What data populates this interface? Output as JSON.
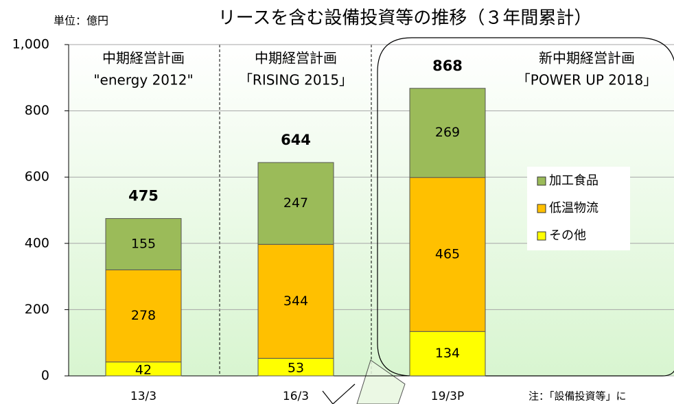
{
  "chart_data": {
    "type": "bar",
    "stacked": true,
    "title": "リースを含む設備投資等の推移（３年間累計）",
    "unit_label": "単位：億円",
    "note": "注：「設備投資等」に",
    "categories": [
      "13/3",
      "16/3",
      "19/3P"
    ],
    "series": [
      {
        "name": "その他",
        "color": "#ffff00",
        "values": [
          42,
          53,
          134
        ]
      },
      {
        "name": "低温物流",
        "color": "#ffc000",
        "values": [
          278,
          344,
          465
        ]
      },
      {
        "name": "加工食品",
        "color": "#9bbb59",
        "values": [
          155,
          247,
          269
        ]
      }
    ],
    "totals": [
      475,
      644,
      868
    ],
    "periods": [
      {
        "lines": [
          "中期経営計画",
          "\"energy 2012\""
        ]
      },
      {
        "lines": [
          "中期経営計画",
          "「RISING 2015」"
        ]
      },
      {
        "lines": [
          "新中期経営計画",
          "「POWER UP  2018」"
        ]
      }
    ],
    "ylim": [
      0,
      1000
    ],
    "yticks": [
      0,
      200,
      400,
      600,
      {
        "value": 800,
        "label": "800"
      },
      {
        "value": 1000,
        "label": "1,000"
      }
    ],
    "grid": true
  }
}
